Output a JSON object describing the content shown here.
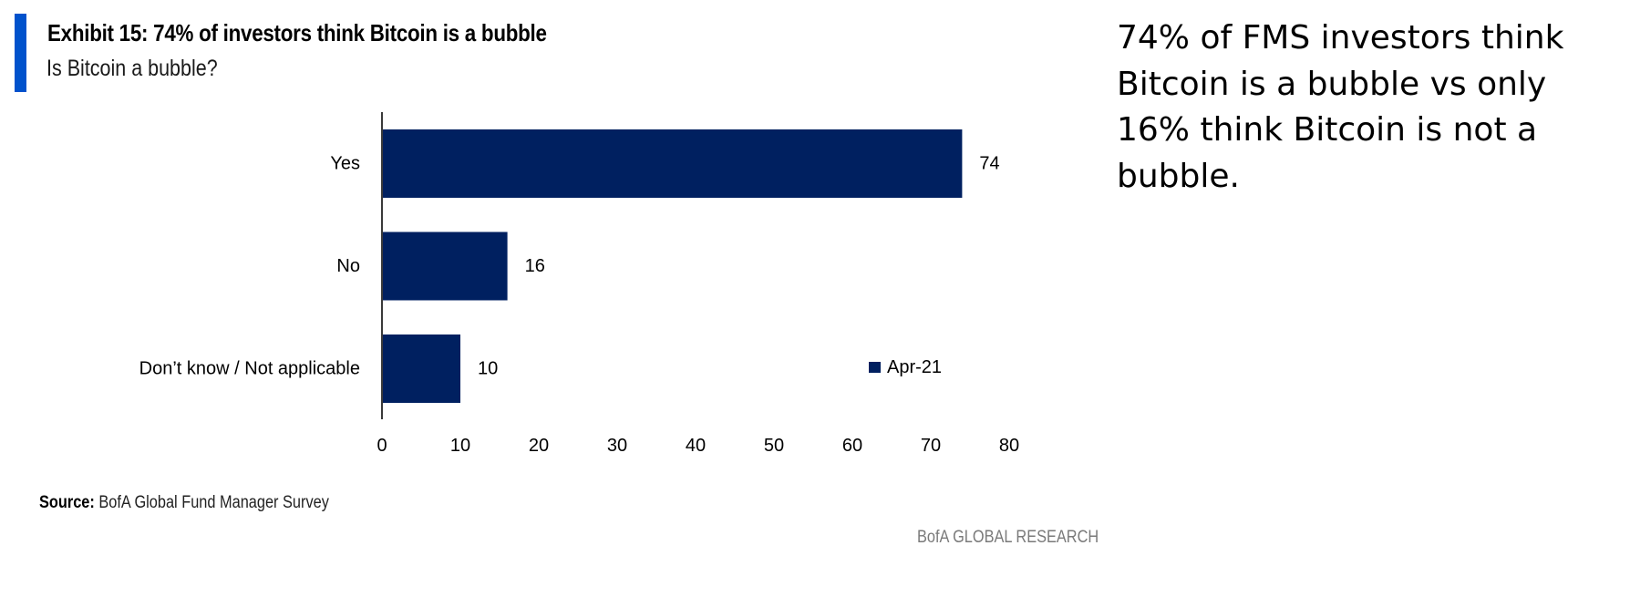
{
  "header": {
    "title": "Exhibit 15: 74% of investors think Bitcoin is a bubble",
    "subtitle": "Is Bitcoin a bubble?",
    "accent_color": "#0052cc"
  },
  "note": "74% of FMS investors think Bitcoin is a bubble vs only 16% think Bitcoin is not a bubble.",
  "footer": {
    "source_label": "Source:",
    "source_text": "BofA Global Fund Manager Survey",
    "brand": "BofA GLOBAL RESEARCH"
  },
  "chart_data": {
    "type": "bar",
    "orientation": "horizontal",
    "title": "Exhibit 15: 74% of investors think Bitcoin is a bubble",
    "subtitle": "Is Bitcoin a bubble?",
    "categories": [
      "Yes",
      "No",
      "Don’t know / Not applicable"
    ],
    "series": [
      {
        "name": "Apr-21",
        "values": [
          74,
          16,
          10
        ],
        "color": "#002060"
      }
    ],
    "xlabel": "",
    "ylabel": "",
    "xlim": [
      0,
      80
    ],
    "xticks": [
      0,
      10,
      20,
      30,
      40,
      50,
      60,
      70,
      80
    ],
    "data_labels": true,
    "grid": false,
    "legend": {
      "entries": [
        "Apr-21"
      ],
      "placement": "bottom-right"
    }
  }
}
